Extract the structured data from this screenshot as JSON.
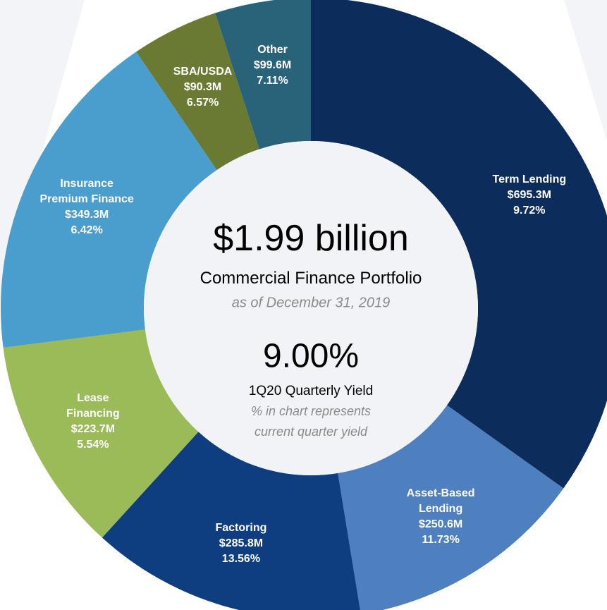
{
  "chart_data": {
    "type": "donut",
    "categories": [
      "Term Lending",
      "Asset-Based\nLending",
      "Factoring",
      "Lease\nFinancing",
      "Insurance\nPremium Finance",
      "SBA/USDA",
      "Other"
    ],
    "values": [
      695.3,
      250.6,
      285.8,
      223.7,
      349.3,
      90.3,
      99.6
    ],
    "value_labels": [
      "$695.3M",
      "$250.6M",
      "$285.8M",
      "$223.7M",
      "$349.3M",
      "$90.3M",
      "$99.6M"
    ],
    "yield_labels": [
      "9.72%",
      "11.73%",
      "13.56%",
      "5.54%",
      "6.42%",
      "6.57%",
      "7.11%"
    ],
    "colors": [
      "#0c2c5c",
      "#4e7fbf",
      "#0e3e80",
      "#9bbb59",
      "#4a9ecd",
      "#6a7a32",
      "#28637a"
    ],
    "center": {
      "title": "$1.99 billion",
      "subtitle": "Commercial Finance Portfolio",
      "date": "as of December 31, 2019",
      "yield": "9.00%",
      "yield_label": "1Q20 Quarterly Yield",
      "note": "% in chart represents\ncurrent quarter yield"
    }
  }
}
